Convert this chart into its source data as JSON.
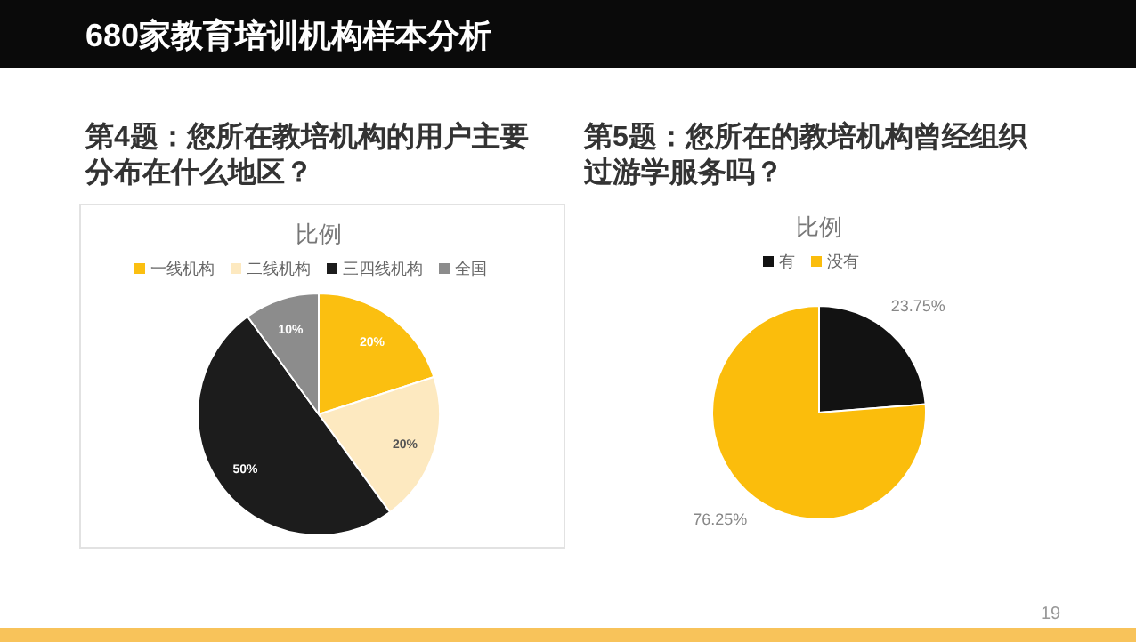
{
  "chart_data": [
    {
      "type": "pie",
      "title": "第4题：您所在教培机构的用户主要分布在什么地区？",
      "subtitle": "比例",
      "categories": [
        "一线机构",
        "二线机构",
        "三四线机构",
        "全国"
      ],
      "values": [
        20,
        20,
        50,
        10
      ],
      "colors": [
        "#fbbf10",
        "#fde9c0",
        "#1c1c1c",
        "#8c8c8c"
      ],
      "value_labels": [
        "20%",
        "20%",
        "50%",
        "10%"
      ],
      "legend": "top",
      "annotations": [
        "680家教育培训机构样本分析",
        "19"
      ]
    },
    {
      "type": "pie",
      "title": "第5题：您所在的教培机构曾经组织过游学服务吗？",
      "subtitle": "比例",
      "categories": [
        "有",
        "没有"
      ],
      "values": [
        23.75,
        76.25
      ],
      "colors": [
        "#121212",
        "#fbbd0c"
      ],
      "value_labels": [
        "23.75%",
        "76.25%"
      ],
      "legend": "top"
    }
  ]
}
